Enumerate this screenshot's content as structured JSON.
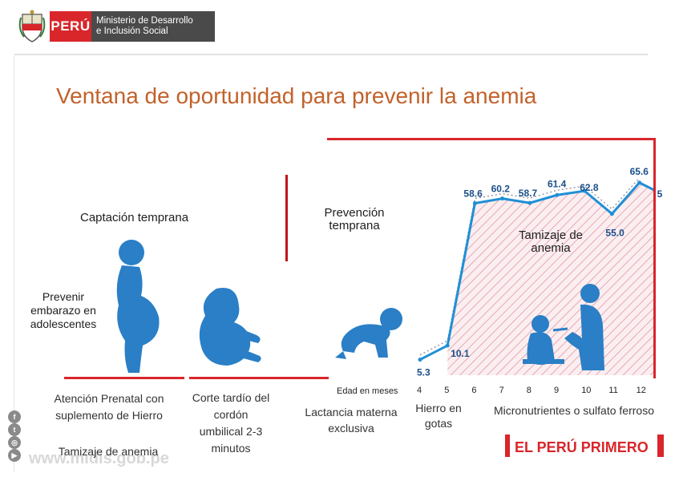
{
  "header": {
    "country": "PERÚ",
    "ministry_line1": "Ministerio de Desarrollo",
    "ministry_line2": "e Inclusión Social"
  },
  "title": "Ventana de oportunidad para prevenir la anemia",
  "labels": {
    "captacion": "Captación temprana",
    "prevencion": "Prevención temprana",
    "tamizaje_chart": "Tamizaje de anemia",
    "prevenir": "Prevenir embarazo en adolescentes"
  },
  "bottom": {
    "atencion": "Atención Prenatal con suplemento de Hierro",
    "tamizaje": "Tamizaje de anemia",
    "corte": "Corte tardío del cordón umbilical 2-3 minutos",
    "lactancia": "Lactancia materna exclusiva",
    "hierro": "Hierro en gotas",
    "micro": "Micronutrientes o sulfato ferroso"
  },
  "watermark": "www.midis.gob.pe",
  "logo": "EL PERÚ PRIMERO",
  "colors": {
    "accent_red": "#d9262b",
    "title_orange": "#c2622b",
    "line_blue": "#1f8fd6",
    "silhouette_blue": "#2a7fc6"
  },
  "icons": [
    "crest-icon",
    "pregnant-silhouette-icon",
    "fetus-icon",
    "crawling-baby-icon",
    "mother-feeding-icon",
    "facebook-icon",
    "twitter-icon",
    "instagram-icon",
    "youtube-icon"
  ],
  "chart_data": {
    "type": "line",
    "xlabel": "Edad en meses",
    "categories": [
      "4",
      "5",
      "6",
      "7",
      "8",
      "9",
      "10",
      "11",
      "12"
    ],
    "series": [
      {
        "values": [
          5.3,
          10.1,
          58.6,
          60.2,
          58.7,
          61.4,
          62.8,
          55.0,
          65.6
        ]
      }
    ],
    "data_labels": [
      "5.3",
      "10.1",
      "58.6",
      "60.2",
      "58.7",
      "61.4",
      "62.8",
      "55.0",
      "65.6"
    ],
    "extra_label": "5",
    "grid": false
  }
}
